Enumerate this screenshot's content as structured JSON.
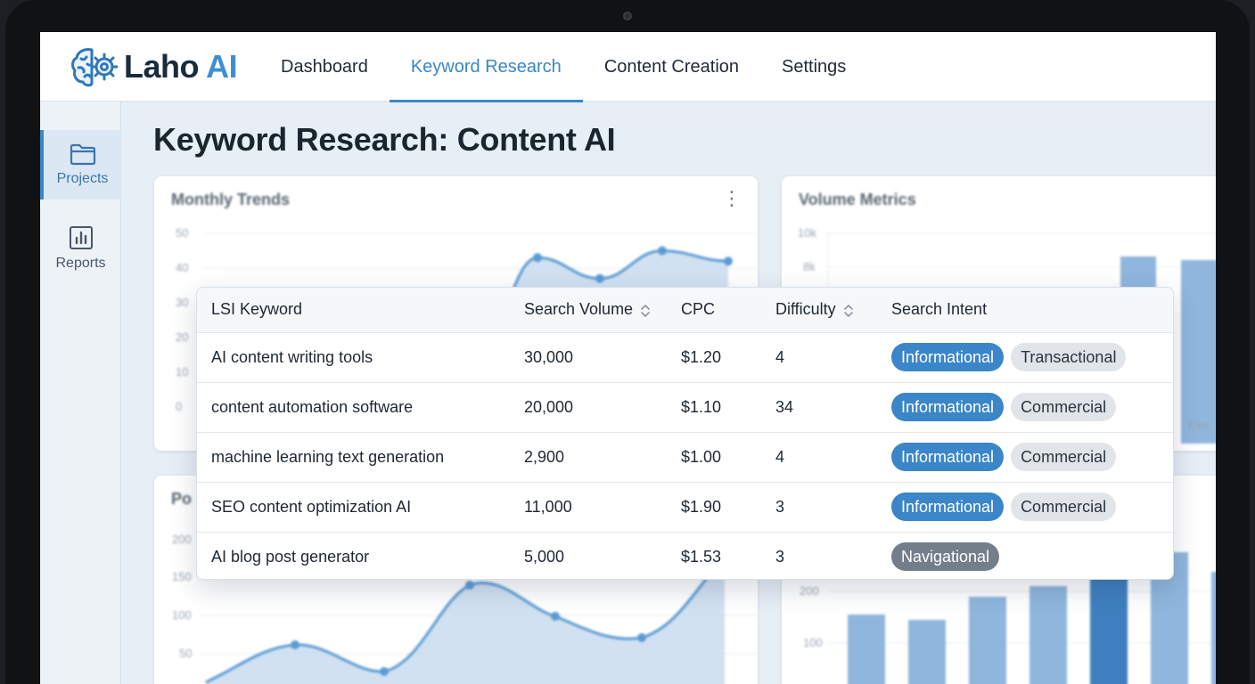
{
  "app": {
    "logo_text_main": "Laho",
    "logo_text_accent": "AI",
    "logo_icon": "brain-gear-icon"
  },
  "nav": {
    "tabs": [
      {
        "label": "Dashboard",
        "active": false
      },
      {
        "label": "Keyword Research",
        "active": true
      },
      {
        "label": "Content Creation",
        "active": false
      },
      {
        "label": "Settings",
        "active": false
      }
    ]
  },
  "sidebar": {
    "items": [
      {
        "label": "Projects",
        "icon": "folder-icon",
        "active": true
      },
      {
        "label": "Reports",
        "icon": "bar-chart-icon",
        "active": false
      }
    ]
  },
  "page": {
    "title": "Keyword Research: Content AI"
  },
  "cards": {
    "monthly_trends": {
      "title": "Monthly Trends"
    },
    "volume_metrics": {
      "title": "Volume Metrics"
    },
    "bottom_left": {
      "title": "Po"
    }
  },
  "chart_data": [
    {
      "type": "area",
      "title": "Monthly Trends",
      "y_ticks": [
        "50",
        "40",
        "30",
        "20",
        "10",
        "0"
      ],
      "ylim": [
        0,
        50
      ],
      "visible_points": [
        43,
        37,
        45,
        42
      ],
      "grid": true
    },
    {
      "type": "bar",
      "title": "Volume Metrics",
      "y_ticks": [
        "10k",
        "8k"
      ],
      "x_tick_visible": "Elec",
      "grid": true
    },
    {
      "type": "area",
      "title": "Po",
      "y_ticks": [
        "200",
        "150",
        "100",
        "50"
      ],
      "grid": true
    },
    {
      "type": "bar",
      "y_ticks": [
        "200",
        "100"
      ],
      "grid": true
    }
  ],
  "table": {
    "columns": [
      {
        "label": "LSI Keyword",
        "sortable": false
      },
      {
        "label": "Search Volume",
        "sortable": true
      },
      {
        "label": "CPC",
        "sortable": false
      },
      {
        "label": "Difficulty",
        "sortable": true
      },
      {
        "label": "Search Intent",
        "sortable": false
      }
    ],
    "rows": [
      {
        "keyword": "AI content writing tools",
        "volume": "30,000",
        "cpc": "$1.20",
        "difficulty": "4",
        "intents": [
          {
            "label": "Informational",
            "style": "info"
          },
          {
            "label": "Transactional",
            "style": "other"
          }
        ]
      },
      {
        "keyword": "content automation software",
        "volume": "20,000",
        "cpc": "$1.10",
        "difficulty": "34",
        "intents": [
          {
            "label": "Informational",
            "style": "info"
          },
          {
            "label": "Commercial",
            "style": "other"
          }
        ]
      },
      {
        "keyword": "machine learning text generation",
        "volume": "2,900",
        "cpc": "$1.00",
        "difficulty": "4",
        "intents": [
          {
            "label": "Informational",
            "style": "info"
          },
          {
            "label": "Commercial",
            "style": "other"
          }
        ]
      },
      {
        "keyword": "SEO content optimization AI",
        "volume": "11,000",
        "cpc": "$1.90",
        "difficulty": "3",
        "intents": [
          {
            "label": "Informational",
            "style": "info"
          },
          {
            "label": "Commercial",
            "style": "other"
          }
        ]
      },
      {
        "keyword": "AI blog post generator",
        "volume": "5,000",
        "cpc": "$1.53",
        "difficulty": "3",
        "intents": [
          {
            "label": "Navigational",
            "style": "nav"
          }
        ]
      }
    ]
  },
  "colors": {
    "accent": "#3a86c8",
    "chart_fill": "#c9dcef",
    "chart_line": "#5b9bd5",
    "bar": "#8fb6dc",
    "bar_dark": "#3f7fbf"
  }
}
